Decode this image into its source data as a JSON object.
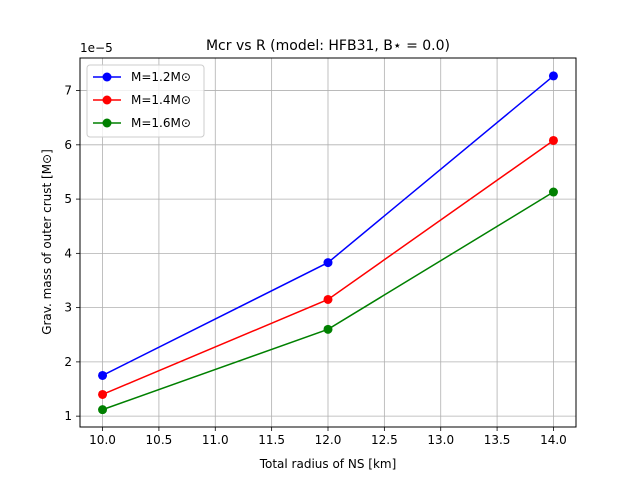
{
  "chart_data": {
    "type": "line",
    "title": "Mcr vs R (model: HFB31, B⋆ = 0.0)",
    "xlabel": "Total radius of NS [km]",
    "ylabel": "Grav. mass of outer crust [M⊙]",
    "y_offset_label": "1e−5",
    "x": [
      10.0,
      12.0,
      14.0
    ],
    "xlim": [
      9.8,
      14.2
    ],
    "ylim": [
      0.8,
      7.6
    ],
    "x_ticks": [
      10.0,
      10.5,
      11.0,
      11.5,
      12.0,
      12.5,
      13.0,
      13.5,
      14.0
    ],
    "x_tick_labels": [
      "10.0",
      "10.5",
      "11.0",
      "11.5",
      "12.0",
      "12.5",
      "13.0",
      "13.5",
      "14.0"
    ],
    "y_ticks": [
      1,
      2,
      3,
      4,
      5,
      6,
      7
    ],
    "y_tick_labels": [
      "1",
      "2",
      "3",
      "4",
      "5",
      "6",
      "7"
    ],
    "y_scale_note": "values ×1e-5",
    "grid": true,
    "legend_position": "top-left",
    "series": [
      {
        "name": "M=1.2M⊙",
        "color": "#0000ff",
        "values": [
          1.75,
          3.83,
          7.27
        ]
      },
      {
        "name": "M=1.4M⊙",
        "color": "#ff0000",
        "values": [
          1.4,
          3.15,
          6.08
        ]
      },
      {
        "name": "M=1.6M⊙",
        "color": "#008000",
        "values": [
          1.12,
          2.6,
          5.13
        ]
      }
    ]
  }
}
